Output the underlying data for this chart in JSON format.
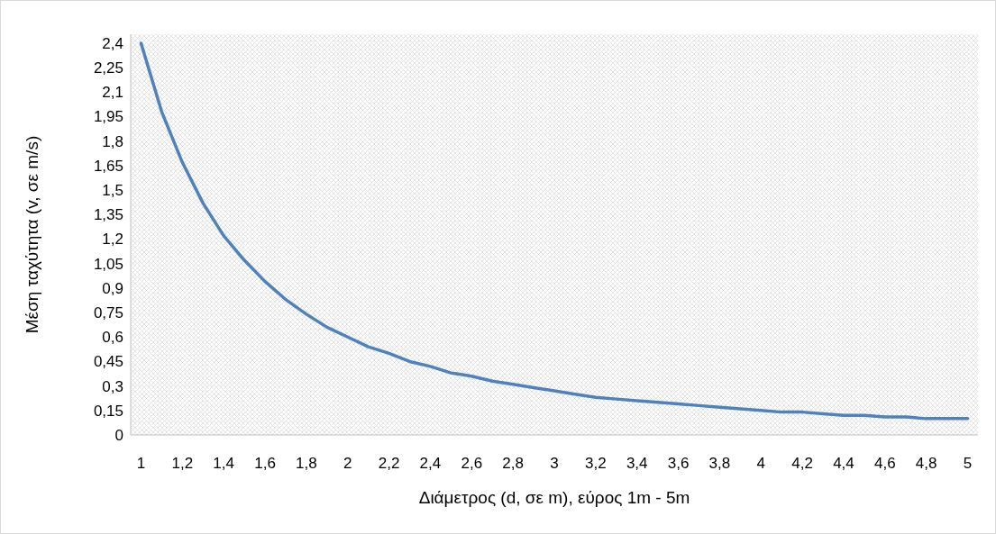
{
  "chart_data": {
    "type": "line",
    "xlabel": "Διάμετρος (d, σε m), εύρος 1m - 5m",
    "ylabel": "Μέση ταχύτητα (v, σε m/s)",
    "x": [
      1,
      1.1,
      1.2,
      1.3,
      1.4,
      1.5,
      1.6,
      1.7,
      1.8,
      1.9,
      2,
      2.1,
      2.2,
      2.3,
      2.4,
      2.5,
      2.6,
      2.7,
      2.8,
      2.9,
      3,
      3.1,
      3.2,
      3.3,
      3.4,
      3.5,
      3.6,
      3.7,
      3.8,
      3.9,
      4,
      4.1,
      4.2,
      4.3,
      4.4,
      4.5,
      4.6,
      4.7,
      4.8,
      4.9,
      5
    ],
    "series": [
      {
        "color": "#4f81bd",
        "values": [
          2.4,
          1.98,
          1.67,
          1.42,
          1.22,
          1.07,
          0.94,
          0.83,
          0.74,
          0.66,
          0.6,
          0.54,
          0.5,
          0.45,
          0.42,
          0.38,
          0.36,
          0.33,
          0.31,
          0.29,
          0.27,
          0.25,
          0.23,
          0.22,
          0.21,
          0.2,
          0.19,
          0.18,
          0.17,
          0.16,
          0.15,
          0.14,
          0.14,
          0.13,
          0.12,
          0.12,
          0.11,
          0.11,
          0.1,
          0.1,
          0.1
        ]
      }
    ],
    "xlim": [
      0.95,
      5.05
    ],
    "xticks": [
      1,
      {
        "value": 1.2,
        "label": "1,2"
      },
      {
        "value": 1.4,
        "label": "1,4"
      },
      {
        "value": 1.6,
        "label": "1,6"
      },
      {
        "value": 1.8,
        "label": "1,8"
      },
      2,
      {
        "value": 2.2,
        "label": "2,2"
      },
      {
        "value": 2.4,
        "label": "2,4"
      },
      {
        "value": 2.6,
        "label": "2,6"
      },
      {
        "value": 2.8,
        "label": "2,8"
      },
      3,
      {
        "value": 3.2,
        "label": "3,2"
      },
      {
        "value": 3.4,
        "label": "3,4"
      },
      {
        "value": 3.6,
        "label": "3,6"
      },
      {
        "value": 3.8,
        "label": "3,8"
      },
      4,
      {
        "value": 4.2,
        "label": "4,2"
      },
      {
        "value": 4.4,
        "label": "4,4"
      },
      {
        "value": 4.6,
        "label": "4,6"
      },
      {
        "value": 4.8,
        "label": "4,8"
      },
      5
    ],
    "ylim": [
      0,
      2.455
    ],
    "yticks": [
      0,
      {
        "value": 0.15,
        "label": "0,15"
      },
      {
        "value": 0.3,
        "label": "0,3"
      },
      {
        "value": 0.45,
        "label": "0,45"
      },
      {
        "value": 0.6,
        "label": "0,6"
      },
      {
        "value": 0.75,
        "label": "0,75"
      },
      {
        "value": 0.9,
        "label": "0,9"
      },
      {
        "value": 1.05,
        "label": "1,05"
      },
      {
        "value": 1.2,
        "label": "1,2"
      },
      {
        "value": 1.35,
        "label": "1,35"
      },
      {
        "value": 1.5,
        "label": "1,5"
      },
      {
        "value": 1.65,
        "label": "1,65"
      },
      {
        "value": 1.8,
        "label": "1,8"
      },
      {
        "value": 1.95,
        "label": "1,95"
      },
      {
        "value": 2.1,
        "label": "2,1"
      },
      {
        "value": 2.25,
        "label": "2,25"
      },
      {
        "value": 2.4,
        "label": "2,4"
      }
    ],
    "grid": false,
    "marker": "none",
    "line_style": "solid"
  }
}
